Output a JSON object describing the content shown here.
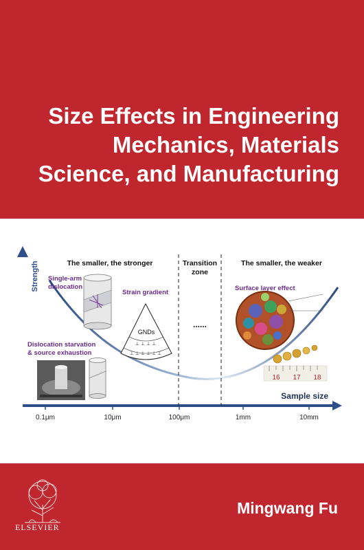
{
  "cover": {
    "title_lines": [
      "Size Effects in Engineering",
      "Mechanics, Materials",
      "Science, and Manufacturing"
    ],
    "author": "Mingwang Fu",
    "publisher": "ELSEVIER"
  },
  "diagram": {
    "y_axis_label": "Strength",
    "x_axis_label": "Sample size",
    "left_heading": "The smaller, the stronger",
    "transition_heading_1": "Transition",
    "transition_heading_2": "zone",
    "right_heading": "The smaller, the weaker",
    "single_arm_1": "Single-arm",
    "single_arm_2": "dislocation",
    "strain_gradient": "Strain gradient",
    "gnds": "GNDs",
    "starvation_1": "Dislocation starvation",
    "starvation_2": "& source exhaustion",
    "surface_layer": "Surface layer effect",
    "dots": "......",
    "ruler_labels": [
      "16",
      "17",
      "18"
    ],
    "ticks": [
      "0.1μm",
      "10μm",
      "100μm",
      "1mm",
      "10mm"
    ],
    "colors": {
      "axis": "#2f4f8a",
      "curve": "#2a4a80",
      "label_purple": "#6a2c8e",
      "cover_red": "#c0262d"
    }
  }
}
